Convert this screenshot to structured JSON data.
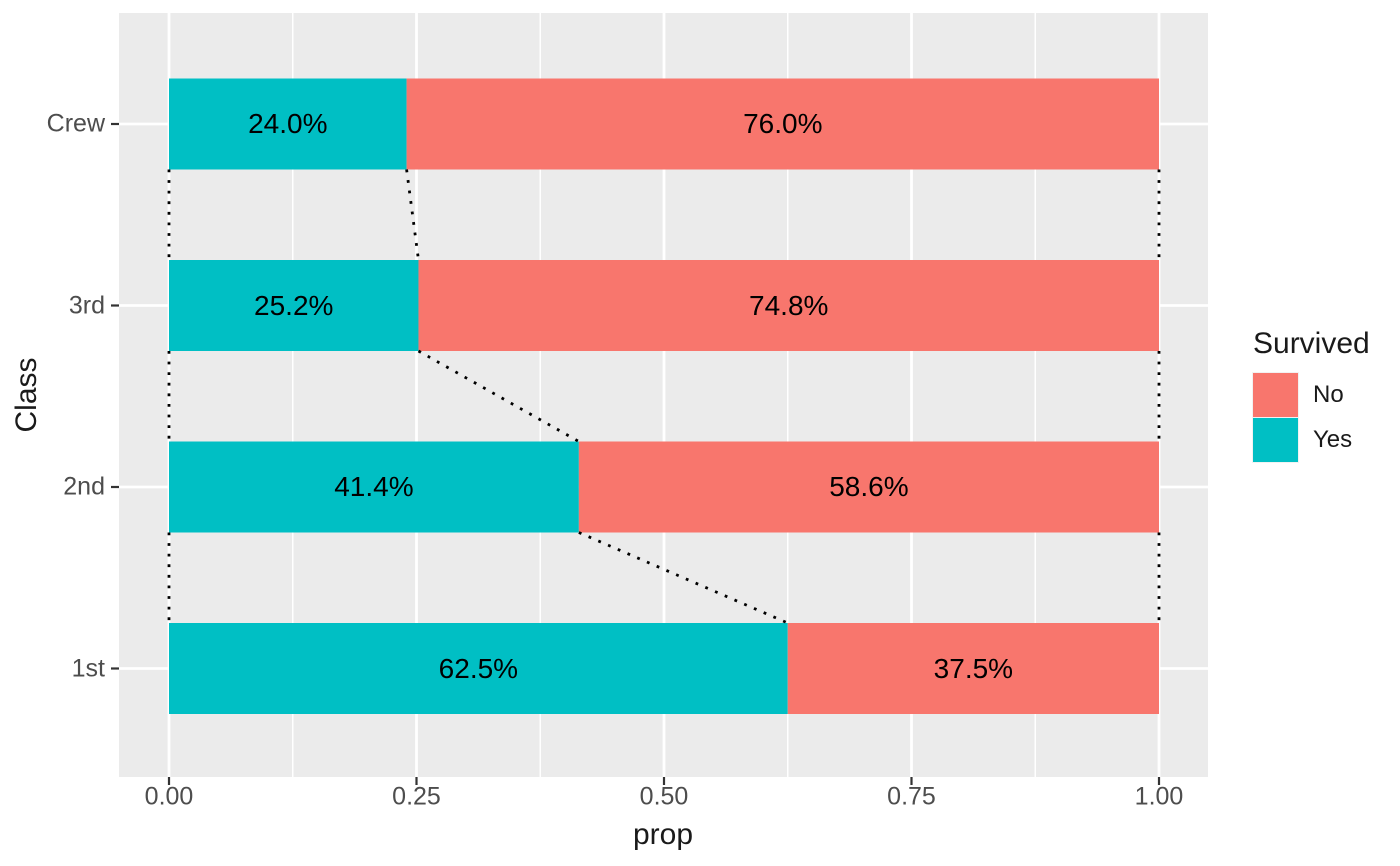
{
  "figure": {
    "background": "#FFFFFF",
    "panel_background": "#EBEBEB",
    "gridline_color": "#FFFFFF",
    "tick_mark_color": "#333333",
    "tick_label_color": "#4D4D4D",
    "axis_title_color": "#1A1A1A",
    "bar_label_color": "#000000",
    "connector_color": "#000000"
  },
  "chart_data": {
    "type": "bar",
    "orientation": "horizontal",
    "stacked": true,
    "title": "",
    "xlabel": "prop",
    "ylabel": "Class",
    "xlim": [
      0,
      1
    ],
    "grid": true,
    "x_ticks": [
      {
        "value": 0.0,
        "label": "0.00"
      },
      {
        "value": 0.25,
        "label": "0.25"
      },
      {
        "value": 0.5,
        "label": "0.50"
      },
      {
        "value": 0.75,
        "label": "0.75"
      },
      {
        "value": 1.0,
        "label": "1.00"
      }
    ],
    "x_minor_ticks": [
      0.125,
      0.375,
      0.625,
      0.875
    ],
    "categories": [
      "Crew",
      "3rd",
      "2nd",
      "1st"
    ],
    "series": [
      {
        "name": "Yes",
        "color": "#00BFC4",
        "values": [
          0.24,
          0.252,
          0.414,
          0.625
        ],
        "labels": [
          "24.0%",
          "25.2%",
          "41.4%",
          "62.5%"
        ]
      },
      {
        "name": "No",
        "color": "#F8766D",
        "values": [
          0.76,
          0.748,
          0.586,
          0.375
        ],
        "labels": [
          "76.0%",
          "74.8%",
          "58.6%",
          "37.5%"
        ]
      }
    ],
    "connectors": {
      "style": "dotted",
      "color": "#000000",
      "description": "dotted segments join the stack boundaries (0, Yes/No split, 1) of vertically adjacent bars"
    },
    "legend": {
      "title": "Survived",
      "position": "right",
      "entries": [
        {
          "label": "No",
          "color": "#F8766D"
        },
        {
          "label": "Yes",
          "color": "#00BFC4"
        }
      ]
    }
  }
}
